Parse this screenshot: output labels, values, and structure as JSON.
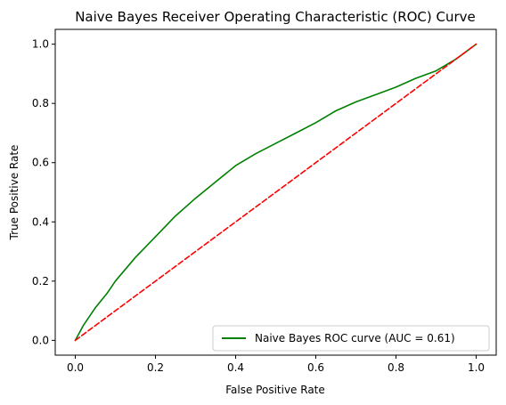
{
  "chart_data": {
    "type": "line",
    "title": "Naive Bayes Receiver Operating Characteristic (ROC) Curve",
    "xlabel": "False Positive Rate",
    "ylabel": "True Positive Rate",
    "xlim": [
      -0.05,
      1.05
    ],
    "ylim": [
      -0.05,
      1.05
    ],
    "xticks": [
      "0.0",
      "0.2",
      "0.4",
      "0.6",
      "0.8",
      "1.0"
    ],
    "yticks": [
      "0.0",
      "0.2",
      "0.4",
      "0.6",
      "0.8",
      "1.0"
    ],
    "grid": false,
    "legend_position": "lower-right",
    "series": [
      {
        "name": "Naive Bayes ROC curve (AUC = 0.61)",
        "color": "#008000",
        "style": "solid",
        "x": [
          0.0,
          0.02,
          0.05,
          0.08,
          0.1,
          0.15,
          0.2,
          0.25,
          0.3,
          0.35,
          0.4,
          0.45,
          0.5,
          0.55,
          0.6,
          0.65,
          0.7,
          0.75,
          0.8,
          0.85,
          0.9,
          0.95,
          1.0
        ],
        "y": [
          0.0,
          0.05,
          0.11,
          0.16,
          0.2,
          0.28,
          0.35,
          0.42,
          0.48,
          0.535,
          0.59,
          0.63,
          0.665,
          0.7,
          0.735,
          0.775,
          0.805,
          0.83,
          0.855,
          0.885,
          0.91,
          0.95,
          1.0
        ]
      },
      {
        "name": "",
        "color": "#ff0000",
        "style": "dashed",
        "x": [
          0.0,
          1.0
        ],
        "y": [
          0.0,
          1.0
        ]
      }
    ]
  }
}
